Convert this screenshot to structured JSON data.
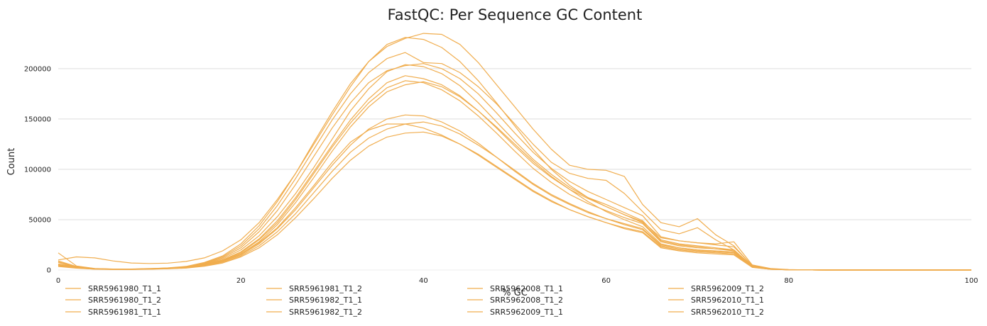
{
  "chart_data": {
    "type": "line",
    "title": "FastQC: Per Sequence GC Content",
    "xlabel": "% GC",
    "ylabel": "Count",
    "xlim": [
      0,
      100
    ],
    "ylim": [
      0,
      240000
    ],
    "x_ticks": [
      0,
      20,
      40,
      60,
      80,
      100
    ],
    "y_ticks": [
      0,
      50000,
      100000,
      150000,
      200000
    ],
    "grid": "horizontal",
    "legend_placement": "bottom",
    "line_color": "#f0ad4e",
    "x": [
      0,
      2,
      4,
      6,
      8,
      10,
      12,
      14,
      16,
      18,
      20,
      22,
      24,
      26,
      28,
      30,
      32,
      34,
      36,
      38,
      40,
      42,
      44,
      46,
      48,
      50,
      52,
      54,
      56,
      58,
      60,
      62,
      64,
      66,
      68,
      70,
      72,
      74,
      76,
      78,
      80,
      82,
      84,
      100
    ],
    "series": [
      {
        "name": "SRR5961980_T1_1",
        "values": [
          17000,
          4000,
          1500,
          1000,
          1000,
          1500,
          2000,
          3000,
          6000,
          11000,
          20000,
          34000,
          53000,
          76000,
          102000,
          130000,
          158000,
          180000,
          197000,
          204000,
          202000,
          195000,
          183000,
          166000,
          147000,
          128000,
          110000,
          95000,
          82000,
          72000,
          65000,
          57000,
          49000,
          30000,
          26000,
          24000,
          22000,
          20000,
          4000,
          1000,
          300,
          100,
          0,
          0
        ]
      },
      {
        "name": "SRR5961980_T1_2",
        "values": [
          6000,
          3000,
          1200,
          800,
          800,
          1200,
          1800,
          2800,
          5500,
          10000,
          18000,
          31000,
          49000,
          72000,
          98000,
          124000,
          149000,
          170000,
          186000,
          193000,
          190000,
          184000,
          173000,
          158000,
          141000,
          123000,
          106000,
          92000,
          80000,
          71000,
          63000,
          55000,
          47000,
          29000,
          25000,
          23000,
          21000,
          19000,
          3500,
          1000,
          300,
          100,
          0,
          0
        ]
      },
      {
        "name": "SRR5961981_T1_1",
        "values": [
          10000,
          13000,
          12000,
          9000,
          7000,
          6500,
          6800,
          8500,
          12000,
          19000,
          30000,
          47000,
          70000,
          96000,
          125000,
          154000,
          182000,
          207000,
          224000,
          231000,
          229000,
          221000,
          207000,
          188000,
          166000,
          143000,
          120000,
          100000,
          84000,
          72000,
          63000,
          55000,
          48000,
          32000,
          29000,
          27000,
          26000,
          28000,
          5000,
          1500,
          500,
          100,
          0,
          0
        ]
      },
      {
        "name": "SRR5961981_T1_2",
        "values": [
          5000,
          2500,
          1000,
          700,
          700,
          1000,
          1500,
          2500,
          5000,
          9000,
          16000,
          28000,
          45000,
          67000,
          92000,
          118000,
          142000,
          162000,
          177000,
          184000,
          187000,
          182000,
          172000,
          158000,
          142000,
          125000,
          108000,
          93000,
          80000,
          68000,
          58000,
          50000,
          43000,
          26000,
          22000,
          20000,
          18000,
          17000,
          3000,
          800,
          200,
          100,
          0,
          0
        ]
      },
      {
        "name": "SRR5961982_T1_1",
        "values": [
          9000,
          3500,
          1400,
          900,
          900,
          1300,
          2000,
          3200,
          6500,
          12000,
          22000,
          38000,
          59000,
          85000,
          113000,
          141000,
          166000,
          186000,
          198000,
          203000,
          205000,
          200000,
          190000,
          175000,
          156000,
          136000,
          117000,
          101000,
          88000,
          78000,
          70000,
          62000,
          54000,
          33000,
          29000,
          27000,
          25000,
          23000,
          4500,
          1200,
          300,
          100,
          0,
          0
        ]
      },
      {
        "name": "SRR5961982_T1_2",
        "values": [
          5500,
          3000,
          1100,
          800,
          800,
          1100,
          1700,
          2700,
          5300,
          9500,
          17000,
          30000,
          47000,
          70000,
          96000,
          122000,
          146000,
          166000,
          181000,
          188000,
          186000,
          179000,
          168000,
          153000,
          136000,
          118000,
          101000,
          87000,
          75000,
          66000,
          59000,
          52000,
          46000,
          28000,
          24000,
          22000,
          21000,
          20000,
          3500,
          900,
          200,
          100,
          0,
          0
        ]
      },
      {
        "name": "SRR5962008_T1_1",
        "values": [
          8000,
          3000,
          1300,
          900,
          900,
          1300,
          2100,
          3600,
          7500,
          14000,
          26000,
          44000,
          68000,
          96000,
          127000,
          157000,
          185000,
          207000,
          222000,
          230000,
          235000,
          234000,
          224000,
          206000,
          184000,
          162000,
          140000,
          120000,
          104000,
          100000,
          99000,
          93000,
          65000,
          47000,
          43000,
          51000,
          35000,
          24000,
          4000,
          1000,
          300,
          100,
          0,
          0
        ]
      },
      {
        "name": "SRR5962008_T1_2",
        "values": [
          7500,
          2800,
          1200,
          800,
          800,
          1200,
          1900,
          3300,
          7000,
          13000,
          24000,
          41000,
          64000,
          91000,
          120000,
          149000,
          175000,
          196000,
          210000,
          216000,
          206000,
          205000,
          196000,
          182000,
          165000,
          145000,
          125000,
          107000,
          96000,
          91000,
          89000,
          76000,
          58000,
          40000,
          36000,
          42000,
          30000,
          20000,
          3500,
          900,
          200,
          100,
          0,
          0
        ]
      },
      {
        "name": "SRR5962009_T1_1",
        "values": [
          4000,
          2000,
          900,
          600,
          600,
          900,
          1300,
          2100,
          4200,
          7800,
          14000,
          24000,
          38000,
          56000,
          77000,
          98000,
          117000,
          131000,
          140000,
          145000,
          147000,
          143000,
          135000,
          124000,
          112000,
          99000,
          86000,
          75000,
          66000,
          58000,
          51000,
          45000,
          40000,
          24000,
          21000,
          19000,
          18000,
          17000,
          3000,
          800,
          200,
          100,
          0,
          0
        ]
      },
      {
        "name": "SRR5962009_T1_2",
        "values": [
          5000,
          2300,
          1000,
          700,
          700,
          1000,
          1500,
          2400,
          4800,
          8800,
          16000,
          27000,
          42000,
          62000,
          84000,
          107000,
          127000,
          139000,
          145000,
          145000,
          141000,
          134000,
          125000,
          114000,
          102000,
          90000,
          78000,
          68000,
          60000,
          53000,
          47000,
          42000,
          38000,
          23000,
          20000,
          18000,
          17000,
          16000,
          2800,
          700,
          200,
          100,
          0,
          0
        ]
      },
      {
        "name": "SRR5962010_T1_1",
        "values": [
          3500,
          1800,
          800,
          500,
          500,
          800,
          1200,
          1900,
          3800,
          7000,
          13000,
          22000,
          35000,
          52000,
          71000,
          91000,
          109000,
          123000,
          132000,
          136000,
          137000,
          133000,
          125000,
          115000,
          103000,
          91000,
          79000,
          69000,
          60000,
          53000,
          47000,
          41000,
          37000,
          22000,
          19000,
          17000,
          16000,
          15000,
          2600,
          700,
          200,
          100,
          0,
          0
        ]
      },
      {
        "name": "SRR5962010_T1_2",
        "values": [
          4500,
          2200,
          1000,
          700,
          700,
          1000,
          1500,
          2400,
          4700,
          8600,
          15000,
          26000,
          41000,
          60000,
          82000,
          104000,
          124000,
          140000,
          150000,
          154000,
          153000,
          147000,
          138000,
          126000,
          112000,
          98000,
          85000,
          74000,
          65000,
          57000,
          51000,
          46000,
          41000,
          25000,
          22000,
          20000,
          19000,
          18000,
          3000,
          800,
          200,
          100,
          0,
          0
        ]
      }
    ]
  }
}
